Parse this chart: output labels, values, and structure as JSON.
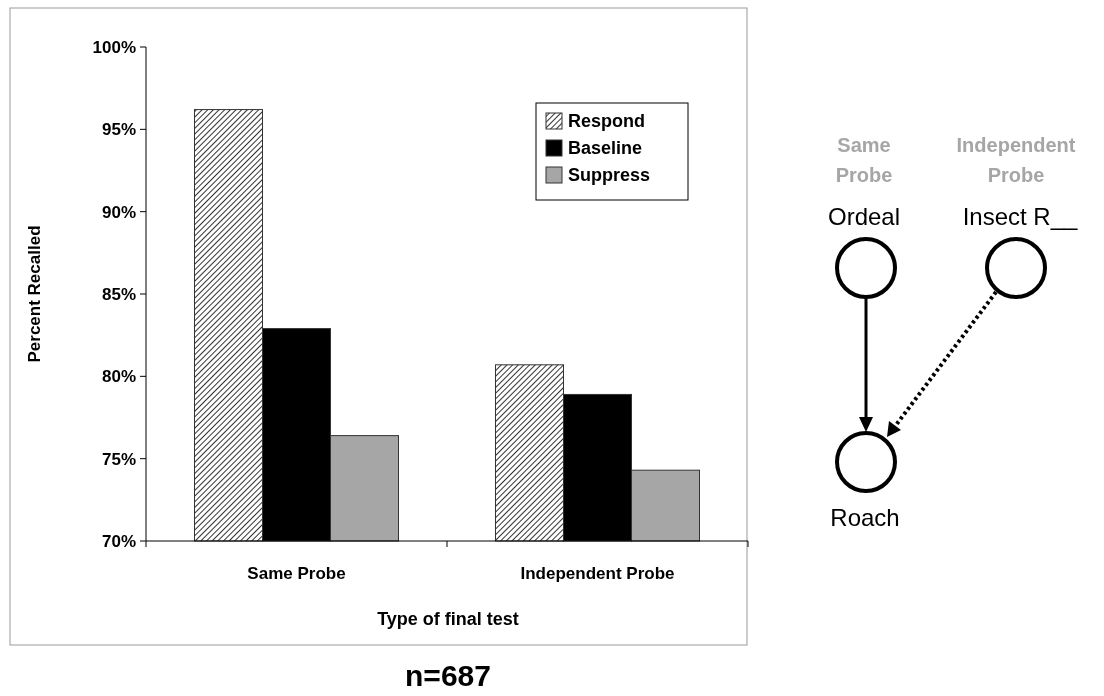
{
  "chart_data": {
    "type": "bar",
    "xlabel": "Type of final test",
    "ylabel": "Percent Recalled",
    "categories": [
      "Same Probe",
      "Independent Probe"
    ],
    "series": [
      {
        "name": "Respond",
        "color": "#333333",
        "values": [
          96.2,
          80.7
        ]
      },
      {
        "name": "Baseline",
        "color": "#000000",
        "values": [
          82.9,
          78.9
        ]
      },
      {
        "name": "Suppress",
        "color": "#a6a6a6",
        "values": [
          76.4,
          74.3
        ]
      }
    ],
    "ylim": [
      70,
      100
    ],
    "yticks": [
      {
        "value": 70,
        "label": "70%"
      },
      {
        "value": 75,
        "label": "75%"
      },
      {
        "value": 80,
        "label": "80%"
      },
      {
        "value": 85,
        "label": "85%"
      },
      {
        "value": 90,
        "label": "90%"
      },
      {
        "value": 95,
        "label": "95%"
      },
      {
        "value": 100,
        "label": "100%"
      }
    ],
    "legend": "top right",
    "annotations": [
      "n=687",
      "Same Probe",
      "Independent Probe",
      "Ordeal",
      "Insect R__",
      "Roach"
    ]
  }
}
